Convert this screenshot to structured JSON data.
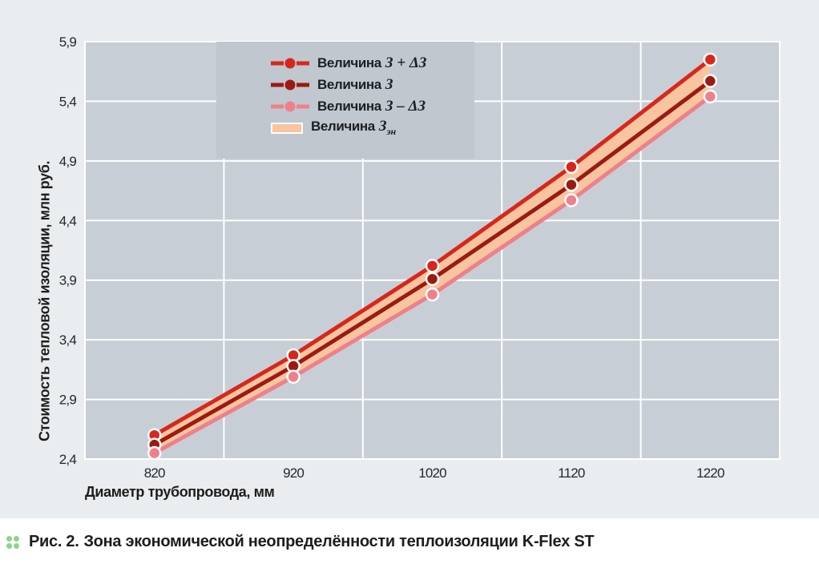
{
  "figure": {
    "caption": {
      "bullet_icon": "four-green-dots",
      "bullet_color": "#8cd58c",
      "label": "Рис. 2.",
      "text": "Зона экономической неопределённости теплоизоляции K-Flex ST"
    }
  },
  "chart_data": {
    "type": "line",
    "title": "",
    "xlabel": "Диаметр трубопровода, мм",
    "ylabel": "Стоимость тепловой изоляции, млн руб.",
    "x_values": [
      820,
      920,
      1020,
      1120,
      1220
    ],
    "xtick_labels": [
      "820",
      "920",
      "1020",
      "1120",
      "1220"
    ],
    "ylim": [
      2.4,
      5.9
    ],
    "ytick_values": [
      2.4,
      2.9,
      3.4,
      3.9,
      4.4,
      4.9,
      5.4,
      5.9
    ],
    "ytick_labels": [
      "2,4",
      "2,9",
      "3,4",
      "3,9",
      "4,4",
      "4,9",
      "5,4",
      "5,9"
    ],
    "grid": true,
    "plot_bg": "#c8ced5",
    "gridline_color": "#ffffff",
    "series": [
      {
        "name": "Величина З + ΔЗ",
        "color": "#d7271c",
        "values": [
          2.6,
          3.27,
          4.02,
          4.85,
          5.75
        ]
      },
      {
        "name": "Величина З",
        "color": "#9b1b12",
        "values": [
          2.52,
          3.18,
          3.91,
          4.7,
          5.57
        ]
      },
      {
        "name": "Величина З – ΔЗ",
        "color": "#ee8089",
        "values": [
          2.45,
          3.09,
          3.78,
          4.57,
          5.44
        ]
      }
    ],
    "band": {
      "name": "Величина Зэн",
      "color": "#f9c4a0",
      "upper": "Величина З + ΔЗ",
      "lower": "Величина З – ΔЗ"
    },
    "legend": {
      "position": "inside-top-left",
      "bg": "#c0c7cf",
      "items": [
        {
          "key": "line-marker",
          "color": "#d7271c",
          "prefix": "Величина",
          "math": "З + ΔЗ",
          "sub": ""
        },
        {
          "key": "line-marker",
          "color": "#9b1b12",
          "prefix": "Величина",
          "math": "З",
          "sub": ""
        },
        {
          "key": "line-marker",
          "color": "#ee8089",
          "prefix": "Величина",
          "math": "З – ΔЗ",
          "sub": ""
        },
        {
          "key": "band-swatch",
          "color": "#f9c4a0",
          "prefix": "Величина",
          "math": "З",
          "sub": "эн"
        }
      ]
    }
  }
}
